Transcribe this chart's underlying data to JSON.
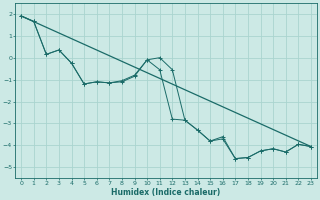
{
  "xlabel": "Humidex (Indice chaleur)",
  "xlim": [
    -0.5,
    23.5
  ],
  "ylim": [
    -5.5,
    2.5
  ],
  "yticks": [
    2,
    1,
    0,
    -1,
    -2,
    -3,
    -4,
    -5
  ],
  "xticks": [
    0,
    1,
    2,
    3,
    4,
    5,
    6,
    7,
    8,
    9,
    10,
    11,
    12,
    13,
    14,
    15,
    16,
    17,
    18,
    19,
    20,
    21,
    22,
    23
  ],
  "bg_color": "#cce9e5",
  "grid_color": "#aad4cf",
  "line_color": "#1a6b68",
  "line1_x": [
    0,
    1,
    2,
    3,
    4,
    5,
    6,
    7,
    8,
    9,
    10,
    11,
    12,
    13,
    14,
    15,
    16,
    17,
    18,
    19,
    20,
    21,
    22,
    23
  ],
  "line1_y": [
    1.9,
    1.65,
    0.15,
    0.35,
    -0.25,
    -1.2,
    -1.1,
    -1.15,
    -1.1,
    -0.85,
    -0.1,
    0.0,
    -0.55,
    -2.85,
    -3.3,
    -3.8,
    -3.7,
    -4.6,
    -4.55,
    -4.25,
    -4.15,
    -4.3,
    -3.95,
    -4.05
  ],
  "line2_x": [
    0,
    1,
    2,
    3,
    4,
    5,
    6,
    7,
    8,
    9,
    10,
    11,
    12,
    13,
    14,
    15,
    16,
    17,
    18,
    19,
    20,
    21,
    22,
    23
  ],
  "line2_y": [
    1.9,
    1.65,
    0.15,
    0.35,
    -0.25,
    -1.2,
    -1.1,
    -1.15,
    -1.05,
    -0.8,
    -0.1,
    -0.55,
    -2.8,
    -2.85,
    -3.3,
    -3.8,
    -3.6,
    -4.6,
    -4.55,
    -4.25,
    -4.15,
    -4.3,
    -3.95,
    -4.05
  ],
  "line3_x": [
    0,
    23
  ],
  "line3_y": [
    1.9,
    -4.05
  ]
}
